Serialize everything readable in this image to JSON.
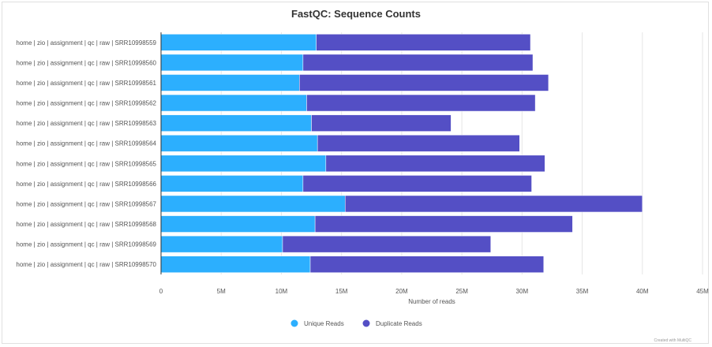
{
  "chart_data": {
    "type": "bar",
    "orientation": "horizontal",
    "stacked": true,
    "title": "FastQC: Sequence Counts",
    "xlabel": "Number of reads",
    "ylabel": "",
    "xlim": [
      0,
      45000000
    ],
    "x_ticks": [
      0,
      5000000,
      10000000,
      15000000,
      20000000,
      25000000,
      30000000,
      35000000,
      40000000,
      45000000
    ],
    "x_tick_labels": [
      "0",
      "5M",
      "10M",
      "15M",
      "20M",
      "25M",
      "30M",
      "35M",
      "40M",
      "45M"
    ],
    "grid": true,
    "legend_position": "bottom",
    "categories": [
      "home | zio | assignment | qc | raw | SRR10998559",
      "home | zio | assignment | qc | raw | SRR10998560",
      "home | zio | assignment | qc | raw | SRR10998561",
      "home | zio | assignment | qc | raw | SRR10998562",
      "home | zio | assignment | qc | raw | SRR10998563",
      "home | zio | assignment | qc | raw | SRR10998564",
      "home | zio | assignment | qc | raw | SRR10998565",
      "home | zio | assignment | qc | raw | SRR10998566",
      "home | zio | assignment | qc | raw | SRR10998567",
      "home | zio | assignment | qc | raw | SRR10998568",
      "home | zio | assignment | qc | raw | SRR10998569",
      "home | zio | assignment | qc | raw | SRR10998570"
    ],
    "series": [
      {
        "name": "Unique Reads",
        "color": "#2caffe",
        "values": [
          12900000,
          11800000,
          11500000,
          12100000,
          12500000,
          13000000,
          13700000,
          11800000,
          15300000,
          12800000,
          10100000,
          12400000
        ]
      },
      {
        "name": "Duplicate Reads",
        "color": "#544fc5",
        "values": [
          17800000,
          19100000,
          20700000,
          19000000,
          11600000,
          16800000,
          18200000,
          19000000,
          24700000,
          21400000,
          17300000,
          19400000
        ]
      }
    ]
  },
  "credit": "Created with MultiQC"
}
